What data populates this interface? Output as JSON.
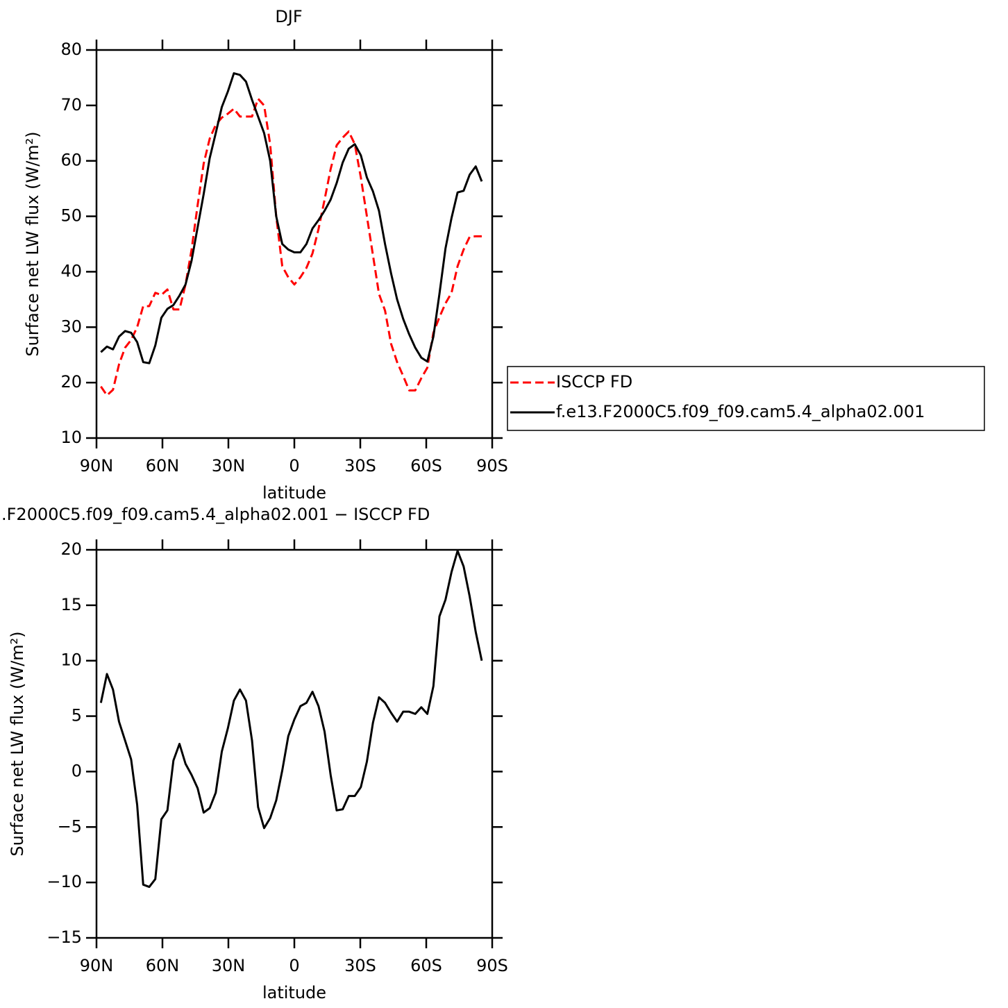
{
  "chart_data": [
    {
      "type": "line",
      "title": "DJF",
      "xlabel": "latitude",
      "ylabel": "Surface net LW flux (W/m²)",
      "xlim": [
        90,
        -90
      ],
      "xticks": [
        {
          "value": 90,
          "label": "90N"
        },
        {
          "value": 60,
          "label": "60N"
        },
        {
          "value": 30,
          "label": "30N"
        },
        0,
        {
          "value": -30,
          "label": "30S"
        },
        {
          "value": -60,
          "label": "60S"
        },
        {
          "value": -90,
          "label": "90S"
        }
      ],
      "ylim": [
        10,
        80
      ],
      "yticks": [
        10,
        20,
        30,
        40,
        50,
        60,
        70,
        80
      ],
      "legend": "right",
      "x": [
        88,
        85.25,
        82.5,
        79.75,
        77,
        74.25,
        71.5,
        68.75,
        66,
        63.25,
        60.5,
        57.75,
        55,
        52.25,
        49.5,
        46.75,
        44,
        41.25,
        38.5,
        35.75,
        33,
        30.25,
        27.5,
        24.75,
        22,
        19.25,
        16.5,
        13.75,
        11,
        8.25,
        5.5,
        2.75,
        0,
        -2.75,
        -5.5,
        -8.25,
        -11,
        -13.75,
        -16.5,
        -19.25,
        -22,
        -24.75,
        -27.5,
        -30.25,
        -33,
        -35.75,
        -38.5,
        -41.25,
        -44,
        -46.75,
        -49.5,
        -52.25,
        -55,
        -57.75,
        -60.5,
        -63.25,
        -66,
        -68.75,
        -71.5,
        -74.25,
        -77,
        -79.75,
        -82.5,
        -85.25
      ],
      "series": [
        {
          "name": "ISCCP FD",
          "color": "#ff0000",
          "dashed": true,
          "values": [
            19.3,
            17.7,
            18.7,
            23.3,
            26.3,
            27.7,
            30,
            33.8,
            33.8,
            36.2,
            35.8,
            36.8,
            33.2,
            33.2,
            37.7,
            44,
            52,
            59.5,
            64,
            66.5,
            67.8,
            68.5,
            69.4,
            68,
            68,
            68,
            71.2,
            70,
            63,
            50,
            41,
            39,
            37.7,
            39,
            40.7,
            43.3,
            47.7,
            53,
            58.5,
            62.8,
            64.2,
            65.3,
            63,
            57,
            50,
            43,
            36,
            33,
            27,
            23.7,
            21.2,
            18.6,
            18.6,
            20.8,
            22.7,
            29,
            31.8,
            34.3,
            36.2,
            41,
            44,
            46.3,
            46.4,
            46.4
          ]
        },
        {
          "name": "f.e13.F2000C5.f09_f09.cam5.4_alpha02.001",
          "color": "#000000",
          "dashed": false,
          "values": [
            25.5,
            26.5,
            26,
            28.3,
            29.3,
            29,
            27.3,
            23.7,
            23.5,
            26.7,
            31.7,
            33.3,
            34,
            35.7,
            37.7,
            42,
            48,
            54,
            60.5,
            65,
            69.7,
            72.5,
            75.8,
            75.5,
            74.3,
            71,
            68,
            65,
            60,
            50,
            45,
            44,
            43.5,
            43.5,
            45,
            47.8,
            49.3,
            51,
            53,
            56,
            59.7,
            62.2,
            63,
            61,
            57,
            54.5,
            51,
            45,
            39.7,
            35,
            31.5,
            28.7,
            26.3,
            24.5,
            23.8,
            28.3,
            36,
            44.2,
            49.7,
            54.3,
            54.6,
            57.5,
            59,
            56.3
          ]
        }
      ]
    },
    {
      "type": "line",
      "title": ".F2000C5.f09_f09.cam5.4_alpha02.001 − ISCCP FD",
      "xlabel": "latitude",
      "ylabel": "Surface net LW flux (W/m²)",
      "xlim": [
        90,
        -90
      ],
      "xticks": [
        {
          "value": 90,
          "label": "90N"
        },
        {
          "value": 60,
          "label": "60N"
        },
        {
          "value": 30,
          "label": "30N"
        },
        0,
        {
          "value": -30,
          "label": "30S"
        },
        {
          "value": -60,
          "label": "60S"
        },
        {
          "value": -90,
          "label": "90S"
        }
      ],
      "ylim": [
        -15,
        20
      ],
      "yticks": [
        {
          "value": -15,
          "label": "−15"
        },
        {
          "value": -10,
          "label": "−10"
        },
        {
          "value": -5,
          "label": "−5"
        },
        0,
        5,
        10,
        15,
        20
      ],
      "x": [
        88,
        85.25,
        82.5,
        79.75,
        77,
        74.25,
        71.5,
        68.75,
        66,
        63.25,
        60.5,
        57.75,
        55,
        52.25,
        49.5,
        46.75,
        44,
        41.25,
        38.5,
        35.75,
        33,
        30.25,
        27.5,
        24.75,
        22,
        19.25,
        16.5,
        13.75,
        11,
        8.25,
        5.5,
        2.75,
        0,
        -2.75,
        -5.5,
        -8.25,
        -11,
        -13.75,
        -16.5,
        -19.25,
        -22,
        -24.75,
        -27.5,
        -30.25,
        -33,
        -35.75,
        -38.5,
        -41.25,
        -44,
        -46.75,
        -49.5,
        -52.25,
        -55,
        -57.75,
        -60.5,
        -63.25,
        -66,
        -68.75,
        -71.5,
        -74.25,
        -77,
        -79.75,
        -82.5,
        -85.25
      ],
      "series": [
        {
          "color": "#000000",
          "dashed": false,
          "values": [
            6.2,
            8.8,
            7.4,
            4.5,
            2.8,
            1.1,
            -3,
            -10.2,
            -10.4,
            -9.7,
            -4.3,
            -3.5,
            1,
            2.5,
            0.7,
            -0.3,
            -1.5,
            -3.7,
            -3.3,
            -1.9,
            1.8,
            3.9,
            6.4,
            7.4,
            6.4,
            2.8,
            -3.2,
            -5.1,
            -4.2,
            -2.6,
            0.1,
            3.2,
            4.7,
            5.9,
            6.2,
            7.2,
            5.9,
            3.6,
            -0.3,
            -3.5,
            -3.4,
            -2.2,
            -2.2,
            -1.4,
            0.9,
            4.4,
            6.7,
            6.2,
            5.3,
            4.5,
            5.4,
            5.4,
            5.2,
            5.8,
            5.2,
            7.7,
            14,
            15.5,
            18,
            19.9,
            18.5,
            15.8,
            12.6,
            10
          ]
        }
      ]
    }
  ]
}
